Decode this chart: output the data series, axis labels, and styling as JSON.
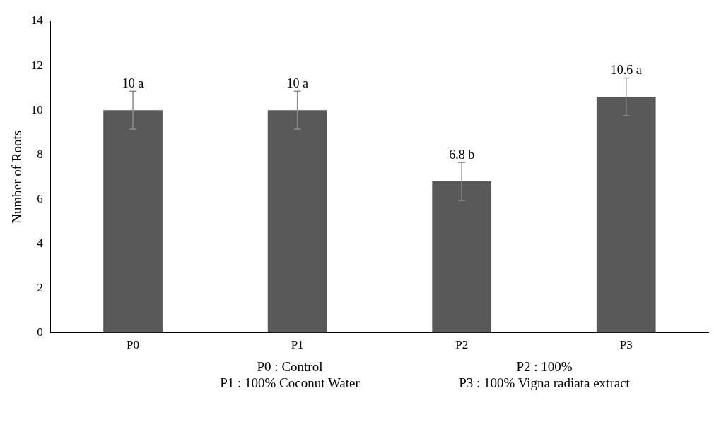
{
  "chart_data": {
    "type": "bar",
    "ylabel": "Number of Roots",
    "categories": [
      "P0",
      "P1",
      "P2",
      "P3"
    ],
    "values": [
      10,
      10,
      6.8,
      10.6
    ],
    "color": "#595959",
    "errors": [
      0.85,
      0.85,
      0.85,
      0.85
    ],
    "value_labels": [
      "10 a",
      "10 a",
      "6.8 b",
      "10.6 a"
    ],
    "ylim": [
      0,
      14
    ],
    "yticks": [
      0,
      2,
      4,
      6,
      8,
      10,
      12,
      14
    ],
    "grid": false,
    "legend": false,
    "annotations": [
      "P0 : Control",
      "P2 : 100%",
      "P1 : 100% Coconut Water",
      "P3 : 100% Vigna radiata extract"
    ]
  }
}
